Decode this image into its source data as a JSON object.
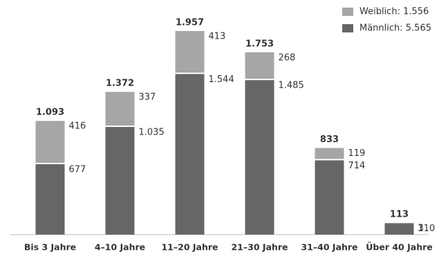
{
  "chart_data": {
    "type": "stacked_bar",
    "categories": [
      "Bis 3 Jahre",
      "4–10 Jahre",
      "11–20 Jahre",
      "21–30 Jahre",
      "31–40 Jahre",
      "Über 40 Jahre"
    ],
    "series": [
      {
        "name": "Weiblich: 1.556",
        "color": "#a6a6a6",
        "values": [
          416,
          337,
          413,
          268,
          119,
          3
        ]
      },
      {
        "name": "Männlich: 5.565",
        "color": "#666666",
        "values": [
          677,
          1035,
          1544,
          1485,
          714,
          110
        ],
        "value_labels": [
          "677",
          "1.035",
          "1.544",
          "1.485",
          "714",
          "110"
        ]
      }
    ],
    "totals": {
      "values": [
        1093,
        1372,
        1957,
        1753,
        833,
        113
      ],
      "value_labels": [
        "1.093",
        "1.372",
        "1.957",
        "1.753",
        "833",
        "113"
      ]
    },
    "legend": "top-right"
  }
}
